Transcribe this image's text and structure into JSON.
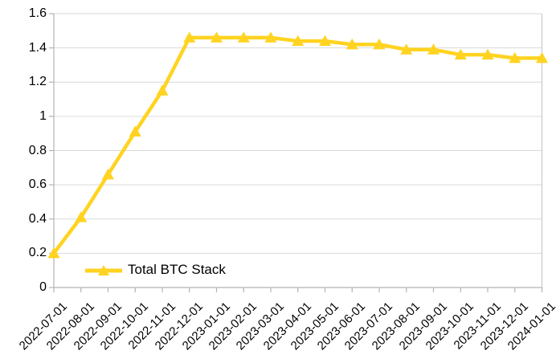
{
  "chart_data": {
    "type": "line",
    "title": "",
    "categories": [
      "2022-07-01",
      "2022-08-01",
      "2022-09-01",
      "2022-10-01",
      "2022-11-01",
      "2022-12-01",
      "2023-01-01",
      "2023-02-01",
      "2023-03-01",
      "2023-04-01",
      "2023-05-01",
      "2023-06-01",
      "2023-07-01",
      "2023-08-01",
      "2023-09-01",
      "2023-10-01",
      "2023-11-01",
      "2023-12-01",
      "2024-01-01"
    ],
    "series": [
      {
        "name": "Total BTC Stack",
        "values": [
          0.2,
          0.41,
          0.66,
          0.91,
          1.15,
          1.46,
          1.46,
          1.46,
          1.46,
          1.44,
          1.44,
          1.42,
          1.42,
          1.39,
          1.39,
          1.36,
          1.36,
          1.34,
          1.34
        ]
      }
    ],
    "ylim": [
      0,
      1.6
    ],
    "yticks": [
      0,
      0.2,
      0.4,
      0.6,
      0.8,
      1.0,
      1.2,
      1.4,
      1.6
    ],
    "ytick_labels": [
      "0",
      "0.2",
      "0.4",
      "0.6",
      "0.8",
      "1",
      "1.2",
      "1.4",
      "1.6"
    ],
    "grid": "horizontal",
    "legend_position": "bottom-left-inside",
    "marker": "triangle-up",
    "colors": {
      "line": "#FFD320",
      "grid": "#D9D9D9",
      "axis": "#B3B3B3",
      "border": "#C8C8C8",
      "text": "#000000",
      "background": "#FFFFFF"
    }
  }
}
